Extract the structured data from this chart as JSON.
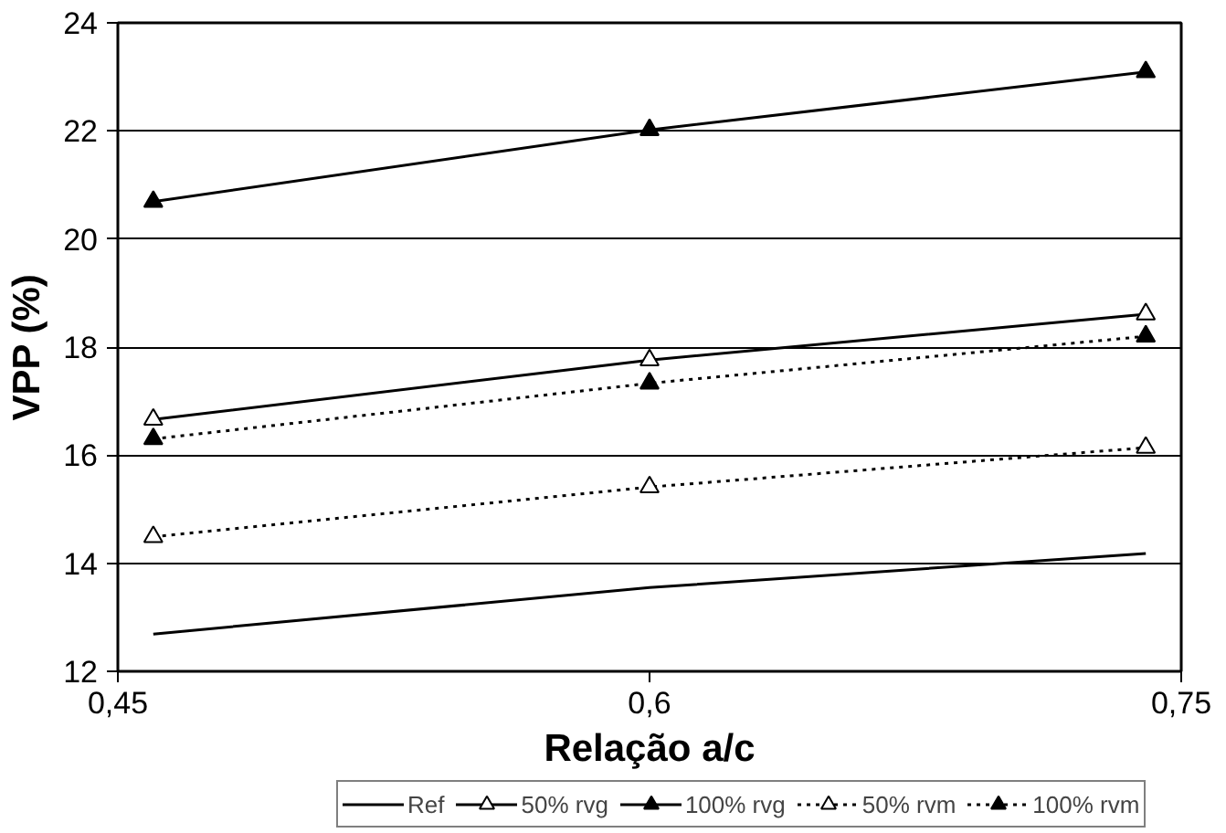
{
  "chart_data": {
    "type": "line",
    "xlabel": "Relação a/c",
    "ylabel": "VPP (%)",
    "x": [
      0.46,
      0.6,
      0.74
    ],
    "xlim": [
      0.45,
      0.75
    ],
    "xticks": [
      {
        "value": 0.45,
        "label": "0,45"
      },
      {
        "value": 0.6,
        "label": "0,6"
      },
      {
        "value": 0.75,
        "label": "0,75"
      }
    ],
    "ylim": [
      12,
      24
    ],
    "yticks": [
      12,
      14,
      16,
      18,
      20,
      22,
      24
    ],
    "grid": "y",
    "legend": "bottom",
    "series": [
      {
        "name": "Ref",
        "color": "#000000",
        "values": [
          12.69,
          13.55,
          14.18
        ],
        "marker": "none",
        "line_style": "solid"
      },
      {
        "name": "50% rvg",
        "color": "#000000",
        "values": [
          16.66,
          17.76,
          18.61
        ],
        "marker": "triangle_open",
        "line_style": "solid"
      },
      {
        "name": "100% rvg",
        "color": "#000000",
        "values": [
          20.69,
          22.02,
          23.09
        ],
        "marker": "triangle",
        "line_style": "solid"
      },
      {
        "name": "50% rvm",
        "color": "#000000",
        "values": [
          14.49,
          15.41,
          16.14
        ],
        "marker": "triangle_open",
        "line_style": "dotted"
      },
      {
        "name": "100% rvm",
        "color": "#000000",
        "values": [
          16.3,
          17.33,
          18.2
        ],
        "marker": "triangle",
        "line_style": "dotted"
      }
    ]
  }
}
